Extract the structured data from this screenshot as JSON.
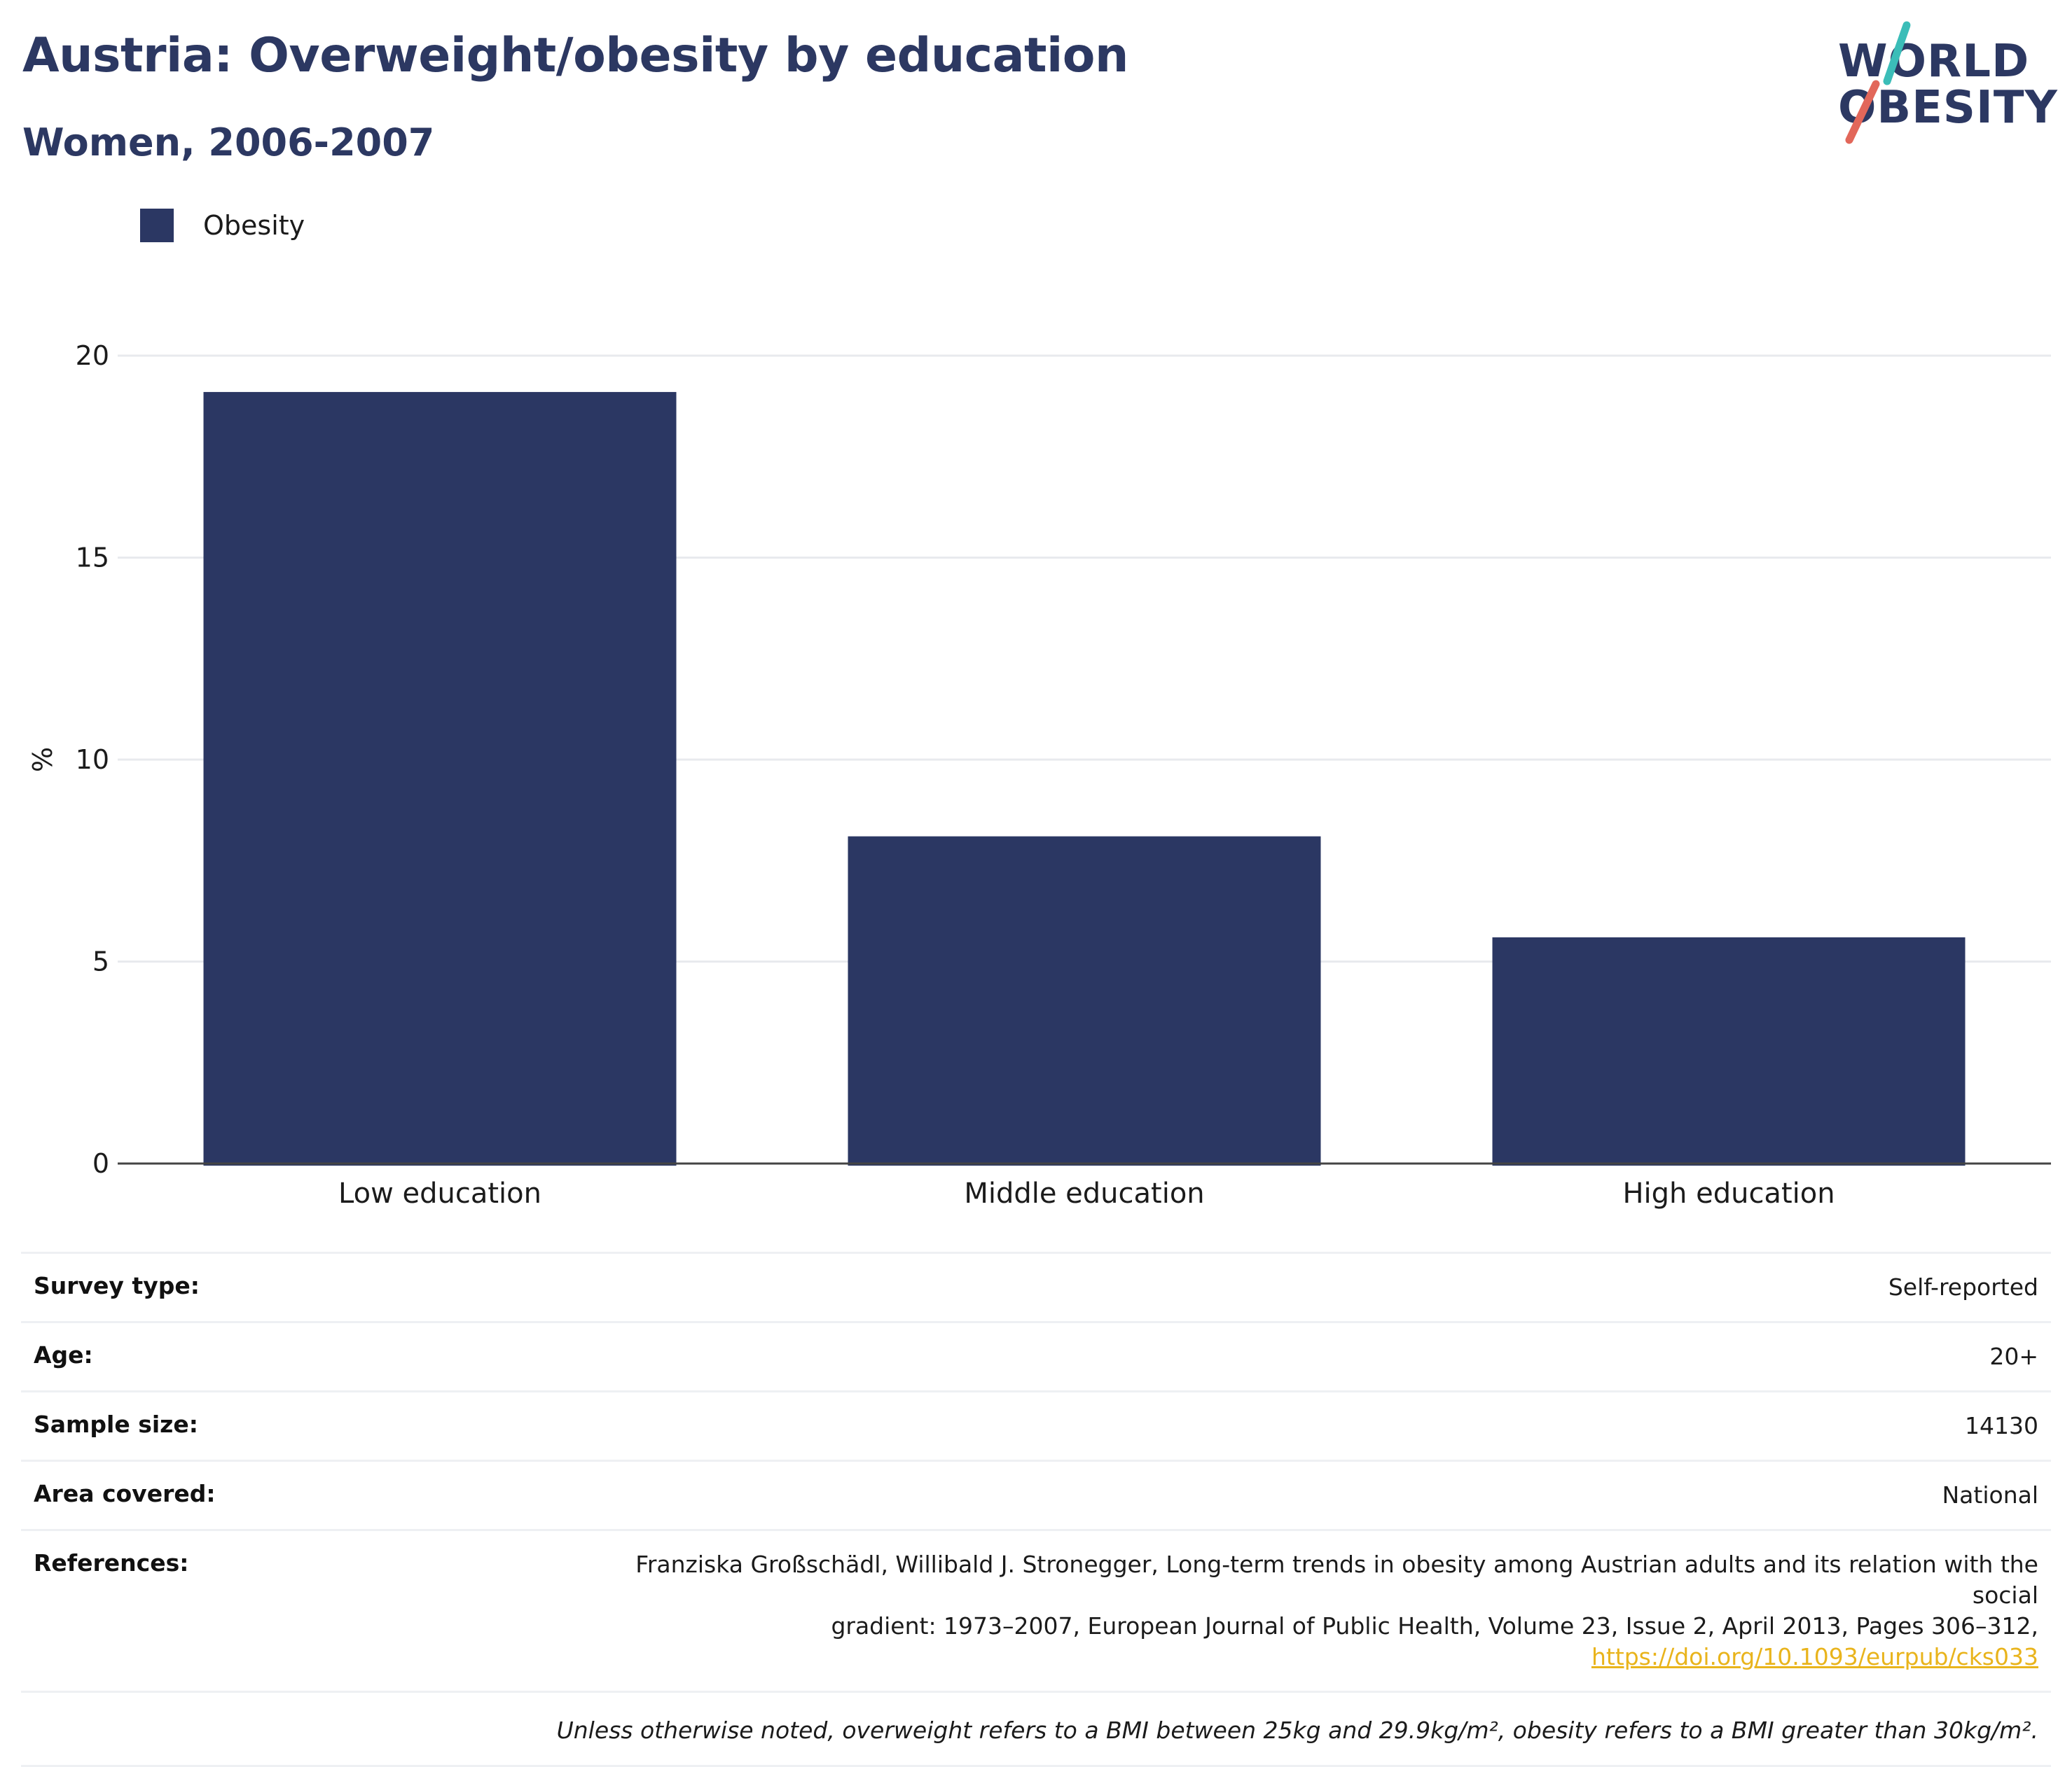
{
  "header": {
    "title": "Austria: Overweight/obesity by education",
    "subtitle": "Women, 2006-2007"
  },
  "logo": {
    "line1": "WORLD",
    "line2": "OBESITY",
    "accent_teal": "#3bbdb8",
    "accent_red": "#e2675a"
  },
  "colors": {
    "bar": "#2b3763",
    "title": "#2c3862",
    "link": "#e9b41c"
  },
  "chart_data": {
    "type": "bar",
    "categories": [
      "Low education",
      "Middle education",
      "High education"
    ],
    "series": [
      {
        "name": "Obesity",
        "values": [
          19.1,
          8.1,
          5.6
        ]
      }
    ],
    "ylabel": "%",
    "yticks": [
      0,
      5,
      10,
      15,
      20
    ],
    "ylim": [
      0,
      20.5
    ],
    "grid": true,
    "legend": "top-left"
  },
  "meta": {
    "survey_type": {
      "label": "Survey type:",
      "value": "Self-reported"
    },
    "age": {
      "label": "Age:",
      "value": "20+"
    },
    "sample_size": {
      "label": "Sample size:",
      "value": "14130"
    },
    "area": {
      "label": "Area covered:",
      "value": "National"
    },
    "references": {
      "label": "References:",
      "text_line1": "Franziska Großschädl, Willibald J. Stronegger, Long-term trends in obesity among Austrian adults and its relation with the social",
      "text_line2": "gradient: 1973–2007, European Journal of Public Health, Volume 23, Issue 2, April 2013, Pages 306–312,",
      "link": "https://doi.org/10.1093/eurpub/cks033"
    }
  },
  "footnote": "Unless otherwise noted, overweight refers to a BMI between 25kg and 29.9kg/m², obesity refers to a BMI greater than 30kg/m²."
}
